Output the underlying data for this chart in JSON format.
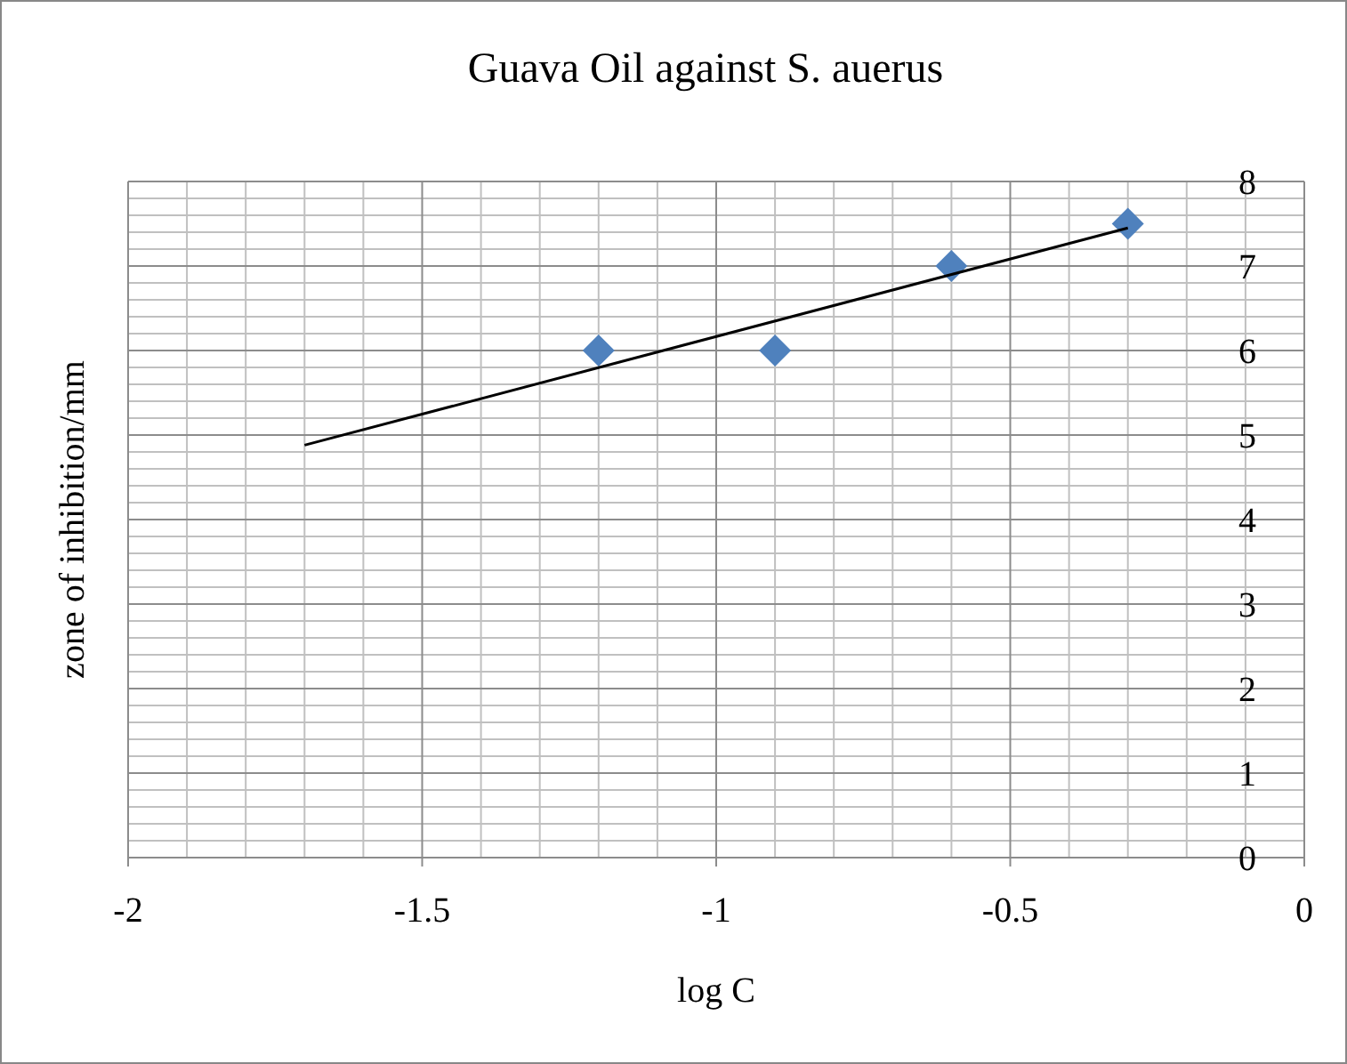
{
  "chart_data": {
    "type": "scatter",
    "title": "Guava Oil against S. auerus",
    "xlabel": "log C",
    "ylabel": "zone of inhibition/mm",
    "x": [
      -1.2,
      -0.9,
      -0.6,
      -0.3
    ],
    "series": [
      {
        "color": "#4f81bd",
        "values": [
          6,
          6,
          7,
          7.5
        ],
        "marker": "diamond"
      },
      {
        "type": "line",
        "color": "#000000",
        "x": [
          -1.7,
          -0.3
        ],
        "values": [
          4.88,
          7.45
        ],
        "marker": "none"
      }
    ],
    "xlim": [
      -2,
      0
    ],
    "xticks": [
      -2,
      -1.5,
      -1,
      -0.5,
      0
    ],
    "ylim": [
      0,
      8
    ],
    "yticks": [
      0,
      1,
      2,
      3,
      4,
      5,
      6,
      7,
      8
    ],
    "grid": true
  }
}
